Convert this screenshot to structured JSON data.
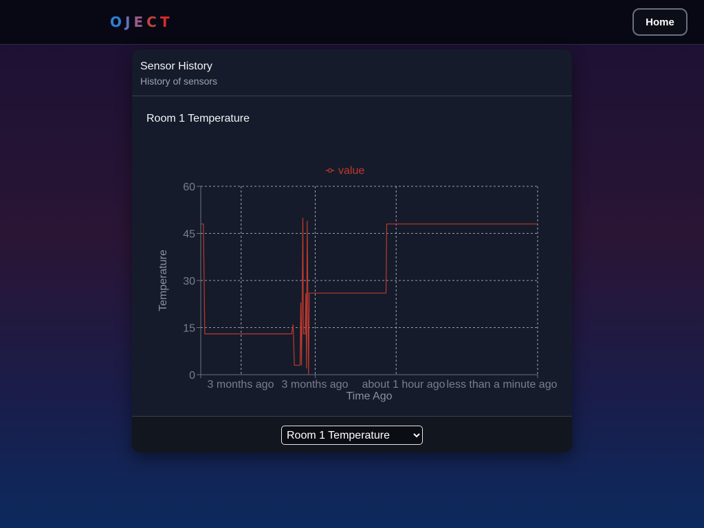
{
  "logo": {
    "letters": [
      "O",
      "J",
      "E",
      "C",
      "T"
    ],
    "colors": [
      "#2f7fd6",
      "#6a6fb3",
      "#9d5b8a",
      "#c1433f",
      "#d62b2b"
    ]
  },
  "nav": {
    "home_label": "Home"
  },
  "card": {
    "title": "Sensor History",
    "subtitle": "History of sensors"
  },
  "chart_title": "Room 1 Temperature",
  "select": {
    "selected": "Room 1 Temperature"
  },
  "chart_data": {
    "type": "line",
    "title": "Room 1 Temperature",
    "xlabel": "Time Ago",
    "ylabel": "Temperature",
    "legend": "top-center",
    "grid": true,
    "line_color": "#c0392b",
    "ylim": [
      0,
      60
    ],
    "y_ticks": [
      0,
      15,
      30,
      45,
      60
    ],
    "x_ticks": [
      "3 months ago",
      "3 months ago",
      "about 1 hour ago",
      "less than a minute ago"
    ],
    "series": [
      {
        "name": "value",
        "points": [
          [
            0.0,
            48
          ],
          [
            0.8,
            48
          ],
          [
            1.2,
            13
          ],
          [
            27,
            13
          ],
          [
            27.4,
            16
          ],
          [
            27.8,
            3
          ],
          [
            29.5,
            3
          ],
          [
            29.7,
            23
          ],
          [
            29.9,
            3
          ],
          [
            30.1,
            23
          ],
          [
            30.3,
            50
          ],
          [
            30.5,
            13
          ],
          [
            31.0,
            13
          ],
          [
            31.2,
            26
          ],
          [
            31.4,
            2
          ],
          [
            31.6,
            49
          ],
          [
            31.8,
            26
          ],
          [
            32.0,
            0
          ],
          [
            32.2,
            26
          ],
          [
            55,
            26
          ],
          [
            55.2,
            48
          ],
          [
            100,
            48
          ]
        ]
      }
    ]
  }
}
